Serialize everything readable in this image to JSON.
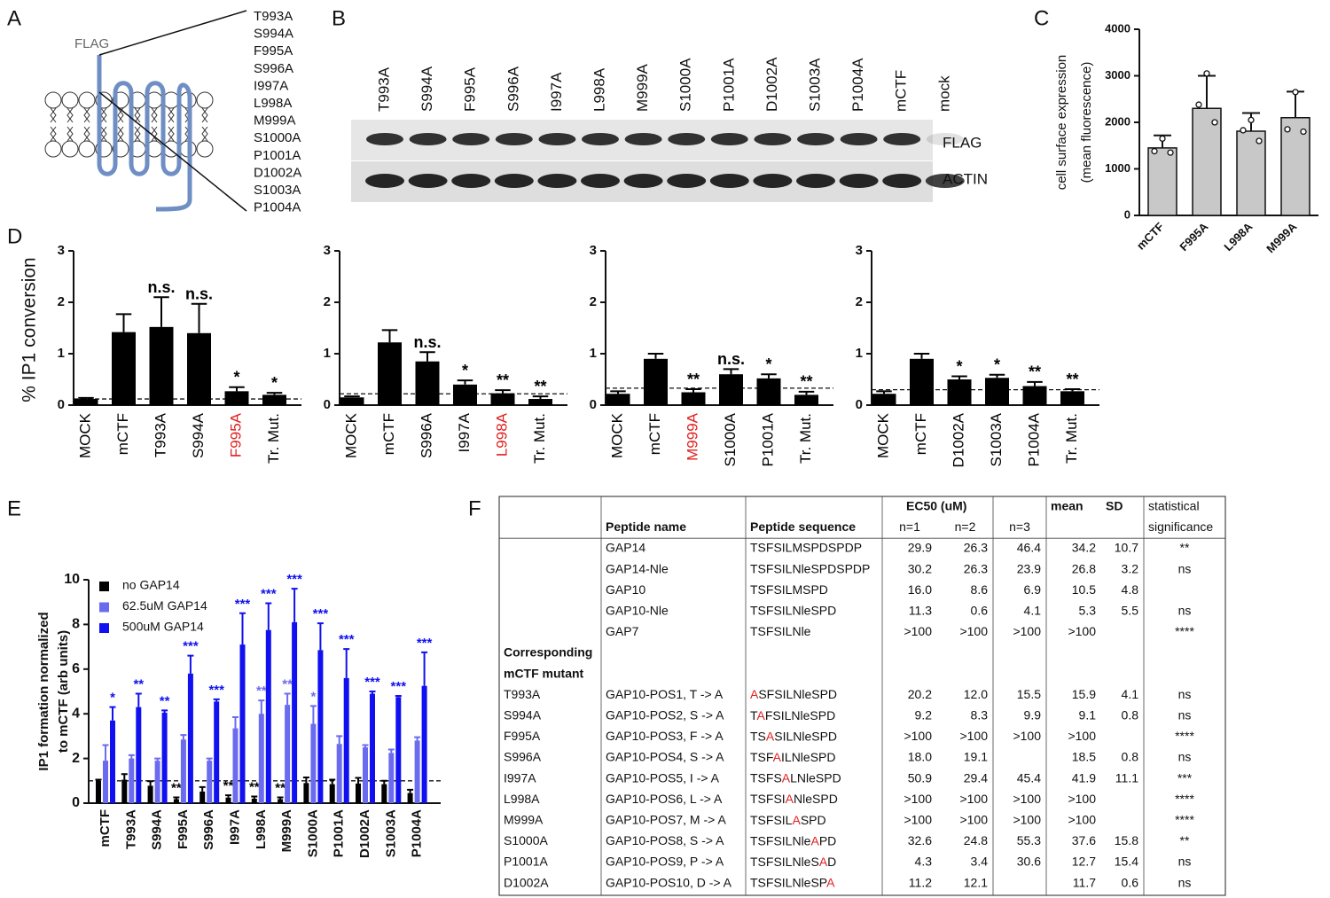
{
  "panels": [
    "A",
    "B",
    "C",
    "D",
    "E",
    "F"
  ],
  "diagram": {
    "tag": "FLAG",
    "mutants": [
      "T993A",
      "S994A",
      "F995A",
      "S996A",
      "I997A",
      "L998A",
      "M999A",
      "S1000A",
      "P1001A",
      "D1002A",
      "S1003A",
      "P1004A"
    ]
  },
  "blot": {
    "lanes": [
      "T993A",
      "S994A",
      "F995A",
      "S996A",
      "I997A",
      "L998A",
      "M999A",
      "S1000A",
      "P1001A",
      "D1002A",
      "S1003A",
      "P1004A",
      "mCTF",
      "mock"
    ],
    "rows": [
      "FLAG",
      "ACTIN"
    ]
  },
  "chart_data": [
    {
      "type": "bar",
      "y_label": [
        "cell surface expression",
        "(mean fluorescence)"
      ],
      "categories": [
        "mCTF",
        "F995A",
        "L998A",
        "M999A"
      ],
      "values": [
        1450,
        2300,
        1810,
        2100
      ],
      "errors": [
        270,
        700,
        390,
        560
      ],
      "points": [
        [
          1650,
          1380,
          1350
        ],
        [
          3050,
          2380,
          2000
        ],
        [
          2050,
          1830,
          1600
        ],
        [
          2650,
          1850,
          1800
        ]
      ],
      "color": "#c8c8c8",
      "ylim": [
        0,
        4000
      ],
      "yticks": [
        0,
        1000,
        2000,
        3000,
        4000
      ]
    },
    {
      "type": "bar",
      "y_label": "% IP1 conversion",
      "categories": [
        "MOCK",
        "mCTF",
        "T993A",
        "S994A",
        "F995A",
        "Tr. Mut."
      ],
      "values": [
        0.12,
        1.42,
        1.52,
        1.4,
        0.27,
        0.2
      ],
      "errors": [
        0.02,
        0.35,
        0.58,
        0.57,
        0.08,
        0.04
      ],
      "annotations": [
        null,
        null,
        "n.s.",
        "n.s.",
        "*",
        "*"
      ],
      "label_colors": [
        "#000000",
        "#000000",
        "#000000",
        "#000000",
        "#e02020",
        "#000000"
      ],
      "color": "#000000",
      "reference_line": 0.12,
      "ylim": [
        0,
        3
      ],
      "yticks": [
        0,
        1,
        2,
        3
      ]
    },
    {
      "type": "bar",
      "categories": [
        "MOCK",
        "mCTF",
        "S996A",
        "I997A",
        "L998A",
        "Tr. Mut."
      ],
      "values": [
        0.15,
        1.22,
        0.85,
        0.4,
        0.23,
        0.12
      ],
      "errors": [
        0.02,
        0.24,
        0.18,
        0.08,
        0.06,
        0.05
      ],
      "annotations": [
        null,
        null,
        "n.s.",
        "*",
        "**",
        "**"
      ],
      "label_colors": [
        "#000000",
        "#000000",
        "#000000",
        "#000000",
        "#e02020",
        "#000000"
      ],
      "color": "#000000",
      "reference_line": 0.22,
      "ylim": [
        0,
        3
      ],
      "yticks": [
        0,
        1,
        2,
        3
      ]
    },
    {
      "type": "bar",
      "categories": [
        "MOCK",
        "mCTF",
        "M999A",
        "S1000A",
        "P1001A",
        "Tr. Mut."
      ],
      "values": [
        0.22,
        0.9,
        0.25,
        0.6,
        0.52,
        0.2
      ],
      "errors": [
        0.05,
        0.1,
        0.06,
        0.1,
        0.08,
        0.06
      ],
      "annotations": [
        null,
        null,
        "**",
        "n.s.",
        "*",
        "**"
      ],
      "label_colors": [
        "#000000",
        "#000000",
        "#e02020",
        "#000000",
        "#000000",
        "#000000"
      ],
      "color": "#000000",
      "reference_line": 0.33,
      "ylim": [
        0,
        3
      ],
      "yticks": [
        0,
        1,
        2,
        3
      ]
    },
    {
      "type": "bar",
      "categories": [
        "MOCK",
        "mCTF",
        "D1002A",
        "S1003A",
        "P1004A",
        "Tr. Mut."
      ],
      "values": [
        0.22,
        0.9,
        0.5,
        0.53,
        0.37,
        0.27
      ],
      "errors": [
        0.05,
        0.1,
        0.06,
        0.06,
        0.08,
        0.04
      ],
      "annotations": [
        null,
        null,
        "*",
        "*",
        "**",
        "**"
      ],
      "label_colors": [
        "#000000",
        "#000000",
        "#000000",
        "#000000",
        "#000000",
        "#000000"
      ],
      "color": "#000000",
      "reference_line": 0.3,
      "ylim": [
        0,
        3
      ],
      "yticks": [
        0,
        1,
        2,
        3
      ]
    },
    {
      "type": "grouped_bar",
      "y_label": [
        "IP1 formation normalized",
        "to mCTF (arb units)"
      ],
      "categories": [
        "mCTF",
        "T993A",
        "S994A",
        "F995A",
        "S996A",
        "I997A",
        "L998A",
        "M999A",
        "S1000A",
        "P1001A",
        "D1002A",
        "S1003A",
        "P1004A"
      ],
      "series": [
        {
          "name": "no GAP14",
          "color": "#000000",
          "values": [
            1.0,
            1.05,
            0.78,
            0.18,
            0.52,
            0.25,
            0.2,
            0.18,
            0.9,
            0.85,
            0.88,
            0.85,
            0.45
          ],
          "errors": [
            0.05,
            0.25,
            0.2,
            0.08,
            0.2,
            0.1,
            0.1,
            0.08,
            0.25,
            0.2,
            0.25,
            0.15,
            0.15
          ],
          "annotations": [
            null,
            null,
            null,
            "**",
            null,
            "**",
            "**",
            "**",
            null,
            null,
            null,
            null,
            null
          ]
        },
        {
          "name": "62.5uM GAP14",
          "color": "#6b6bf0",
          "values": [
            1.9,
            2.0,
            1.9,
            2.85,
            1.9,
            3.35,
            4.0,
            4.4,
            3.55,
            2.65,
            2.5,
            2.25,
            2.8
          ],
          "errors": [
            0.7,
            0.15,
            0.1,
            0.2,
            0.1,
            0.5,
            0.6,
            0.5,
            0.8,
            0.35,
            0.1,
            0.15,
            0.15
          ],
          "annotations": [
            null,
            null,
            null,
            null,
            null,
            null,
            "**",
            "**",
            "*",
            null,
            null,
            null,
            null
          ]
        },
        {
          "name": "500uM GAP14",
          "color": "#1010f0",
          "values": [
            3.7,
            4.3,
            4.05,
            5.8,
            4.55,
            7.1,
            7.75,
            8.1,
            6.85,
            5.6,
            4.9,
            4.75,
            5.25
          ],
          "errors": [
            0.6,
            0.6,
            0.1,
            0.8,
            0.1,
            1.4,
            1.2,
            1.5,
            1.2,
            1.3,
            0.1,
            0.05,
            1.5
          ],
          "annotations": [
            "*",
            "**",
            "**",
            "***",
            "***",
            "***",
            "***",
            "***",
            "***",
            "***",
            "***",
            "***",
            "***"
          ]
        }
      ],
      "reference_line": 1,
      "ylim": [
        0,
        10
      ],
      "yticks": [
        0,
        2,
        4,
        6,
        8,
        10
      ],
      "legend": "upper left"
    }
  ],
  "table": {
    "header": [
      [
        null,
        null,
        null,
        "EC50 (uM)",
        null,
        null,
        "mean",
        "SD",
        "statistical"
      ],
      [
        null,
        "Peptide name",
        "Peptide sequence",
        "n=1",
        "n=2",
        "n=3",
        null,
        null,
        "significance"
      ]
    ],
    "rows": [
      [
        null,
        "GAP14",
        "TSFSILMSPDSPDP",
        "29.9",
        "26.3",
        "46.4",
        "34.2",
        "10.7",
        "**"
      ],
      [
        null,
        "GAP14-Nle",
        "TSFSILNleSPDSPDP",
        "30.2",
        "26.3",
        "23.9",
        "26.8",
        "3.2",
        "ns"
      ],
      [
        null,
        "GAP10",
        "TSFSILMSPD",
        "16.0",
        "8.6",
        "6.9",
        "10.5",
        "4.8",
        null
      ],
      [
        null,
        "GAP10-Nle",
        "TSFSILNleSPD",
        "11.3",
        "0.6",
        "4.1",
        "5.3",
        "5.5",
        "ns"
      ],
      [
        null,
        "GAP7",
        "TSFSILNle",
        ">100",
        ">100",
        ">100",
        ">100",
        null,
        "****"
      ],
      [
        "Corresponding",
        null,
        null,
        null,
        null,
        null,
        null,
        null,
        null
      ],
      [
        "mCTF mutant",
        null,
        null,
        null,
        null,
        null,
        null,
        null,
        null
      ],
      [
        "T993A",
        "GAP10-POS1, T -> A",
        [
          {
            "text": "A",
            "color": "#e02020"
          },
          {
            "text": "SFSILNleSPD"
          }
        ],
        "20.2",
        "12.0",
        "15.5",
        "15.9",
        "4.1",
        "ns"
      ],
      [
        "S994A",
        "GAP10-POS2, S -> A",
        [
          {
            "text": "T"
          },
          {
            "text": "A",
            "color": "#e02020"
          },
          {
            "text": "FSILNleSPD"
          }
        ],
        "9.2",
        "8.3",
        "9.9",
        "9.1",
        "0.8",
        "ns"
      ],
      [
        "F995A",
        "GAP10-POS3, F -> A",
        [
          {
            "text": "TS"
          },
          {
            "text": "A",
            "color": "#e02020"
          },
          {
            "text": "SILNleSPD"
          }
        ],
        ">100",
        ">100",
        ">100",
        ">100",
        null,
        "****"
      ],
      [
        "S996A",
        "GAP10-POS4, S -> A",
        [
          {
            "text": "TSF"
          },
          {
            "text": "A",
            "color": "#e02020"
          },
          {
            "text": "ILNleSPD"
          }
        ],
        "18.0",
        "19.1",
        null,
        "18.5",
        "0.8",
        "ns"
      ],
      [
        "I997A",
        "GAP10-POS5, I -> A",
        [
          {
            "text": "TSFS"
          },
          {
            "text": "A",
            "color": "#e02020"
          },
          {
            "text": "LNleSPD"
          }
        ],
        "50.9",
        "29.4",
        "45.4",
        "41.9",
        "11.1",
        "***"
      ],
      [
        "L998A",
        "GAP10-POS6, L -> A",
        [
          {
            "text": "TSFSI"
          },
          {
            "text": "A",
            "color": "#e02020"
          },
          {
            "text": "NleSPD"
          }
        ],
        ">100",
        ">100",
        ">100",
        ">100",
        null,
        "****"
      ],
      [
        "M999A",
        "GAP10-POS7, M -> A",
        [
          {
            "text": "TSFSIL"
          },
          {
            "text": "A",
            "color": "#e02020"
          },
          {
            "text": "SPD"
          }
        ],
        ">100",
        ">100",
        ">100",
        ">100",
        null,
        "****"
      ],
      [
        "S1000A",
        "GAP10-POS8, S -> A",
        [
          {
            "text": "TSFSILNle"
          },
          {
            "text": "A",
            "color": "#e02020"
          },
          {
            "text": "PD"
          }
        ],
        "32.6",
        "24.8",
        "55.3",
        "37.6",
        "15.8",
        "**"
      ],
      [
        "P1001A",
        "GAP10-POS9, P -> A",
        [
          {
            "text": "TSFSILNleS"
          },
          {
            "text": "A",
            "color": "#e02020"
          },
          {
            "text": "D"
          }
        ],
        "4.3",
        "3.4",
        "30.6",
        "12.7",
        "15.4",
        "ns"
      ],
      [
        "D1002A",
        "GAP10-POS10, D -> A",
        [
          {
            "text": "TSFSILNleSP"
          },
          {
            "text": "A",
            "color": "#e02020"
          }
        ],
        "11.2",
        "12.1",
        null,
        "11.7",
        "0.6",
        "ns"
      ]
    ]
  }
}
